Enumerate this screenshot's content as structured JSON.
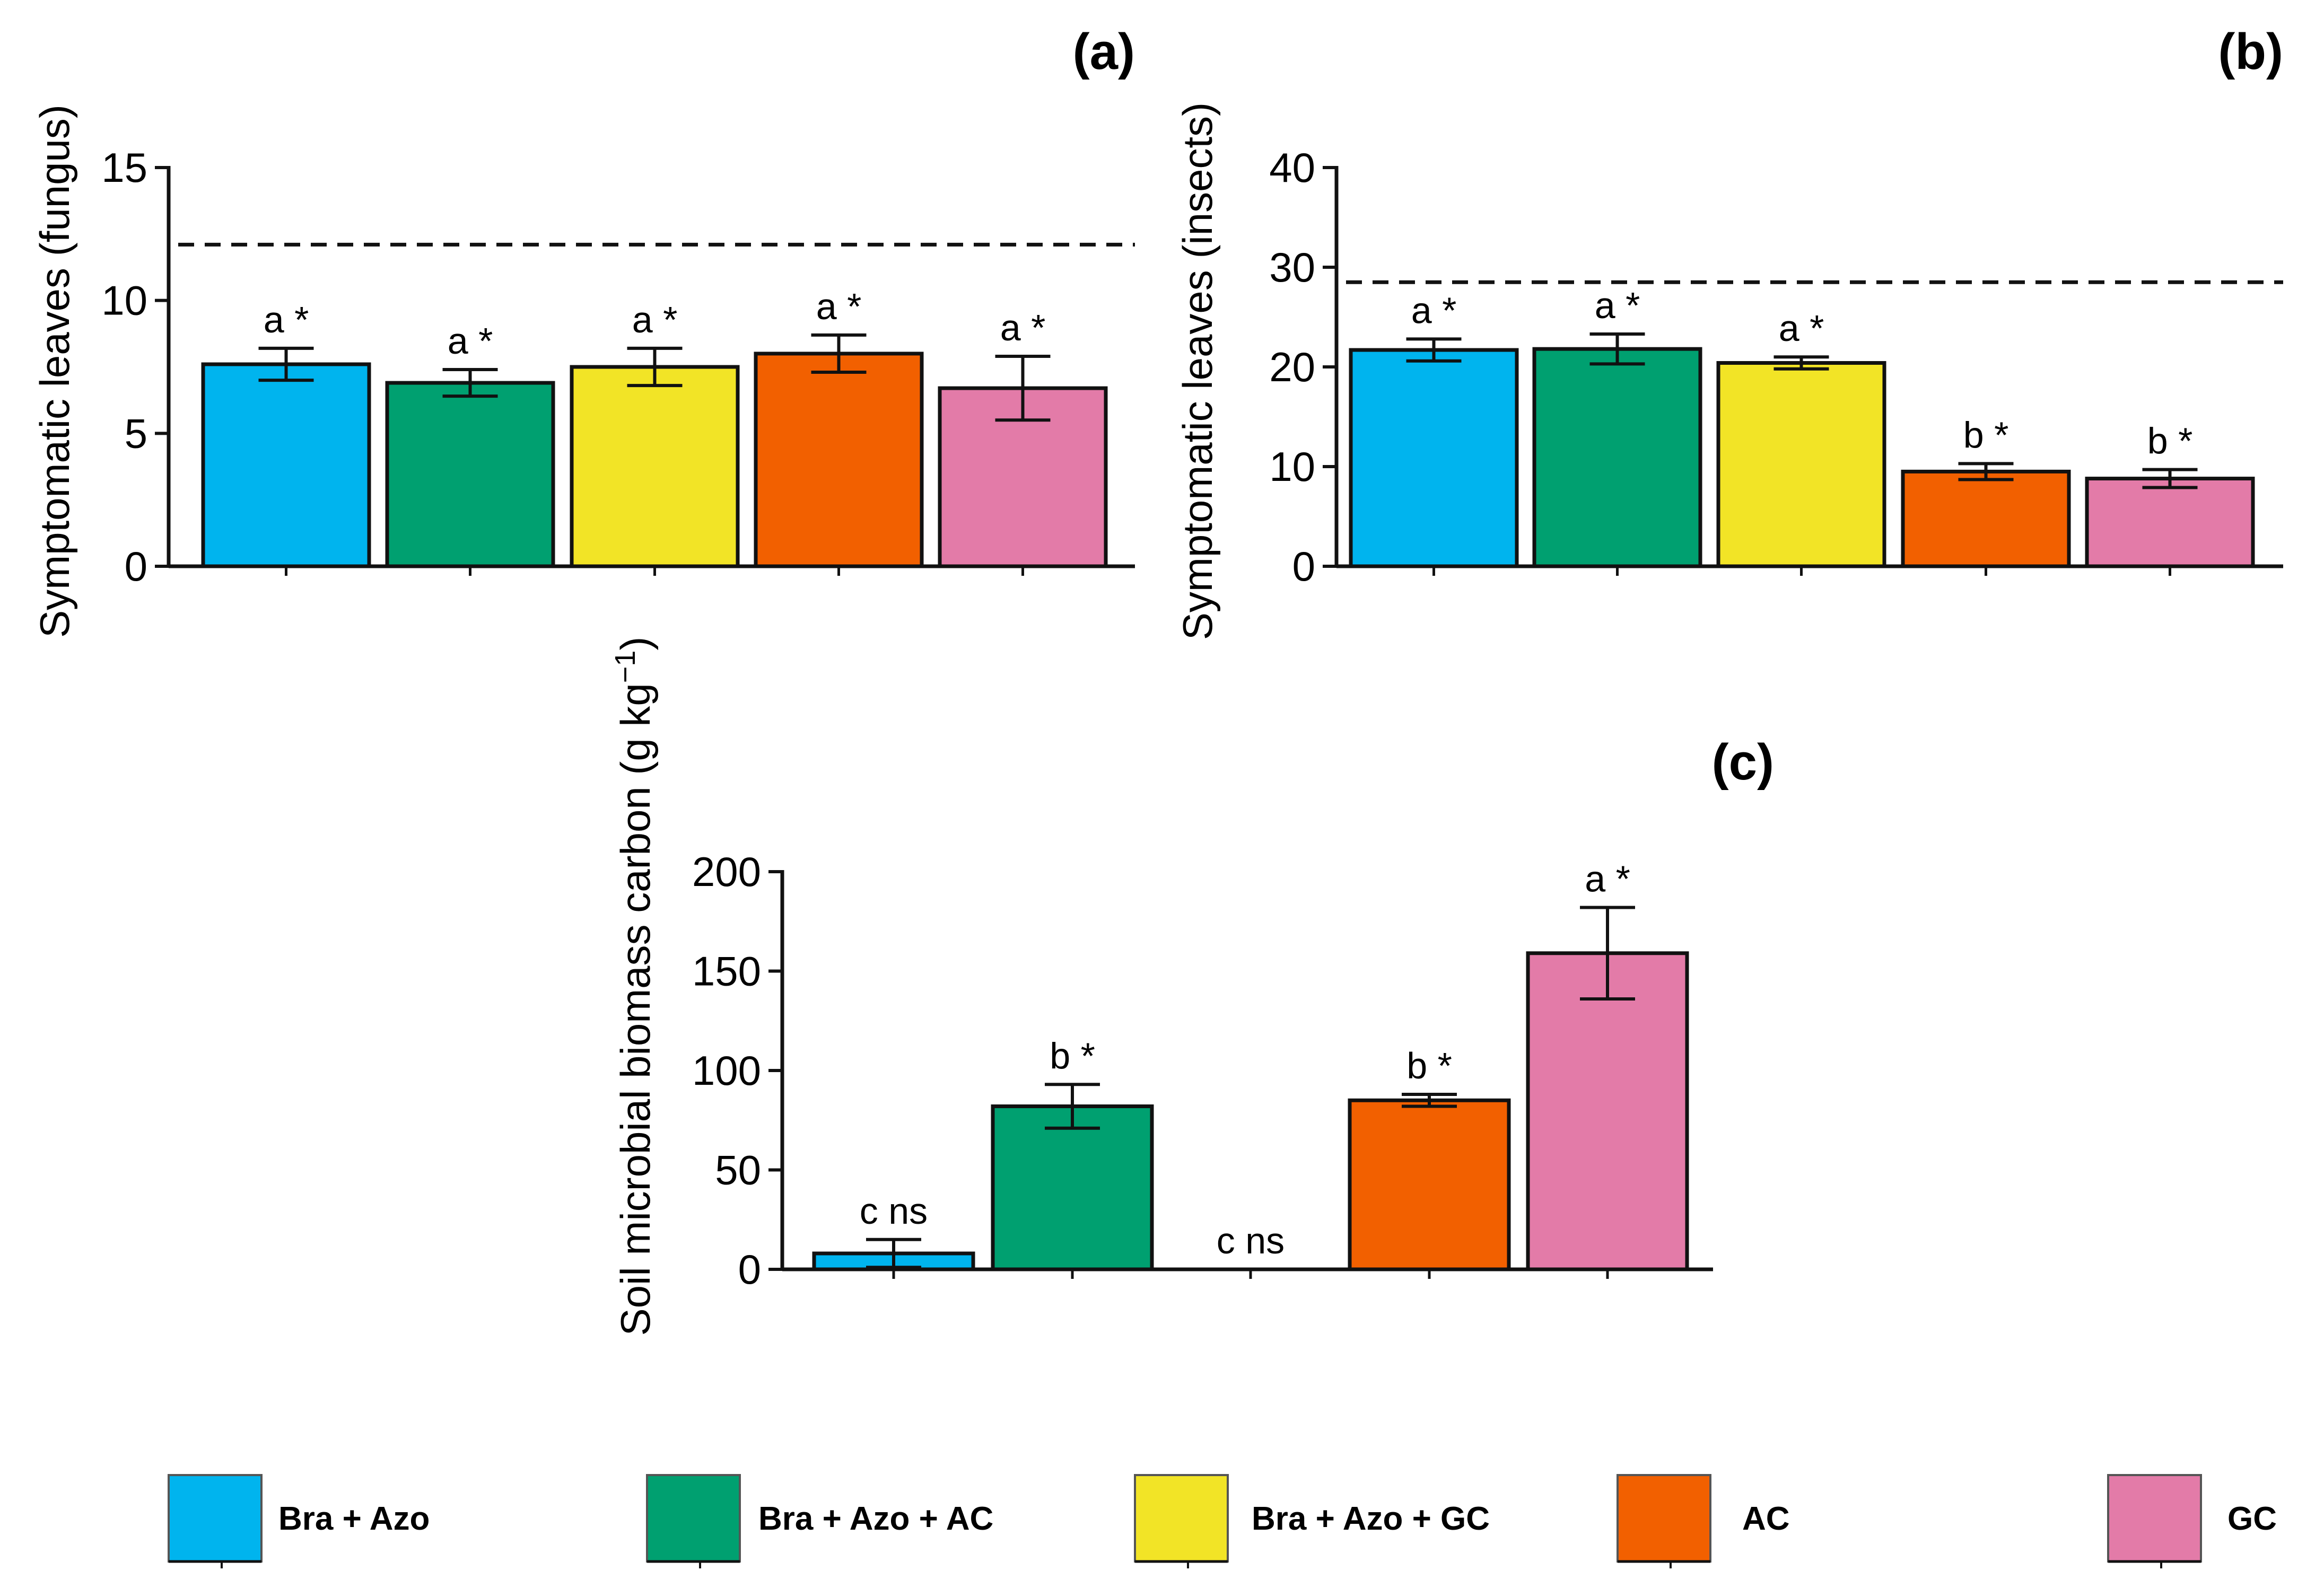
{
  "chart_data": [
    {
      "type": "bar",
      "panel_label": "(a)",
      "title": "",
      "xlabel": "",
      "ylabel": "Symptomatic leaves (fungus)",
      "ylim": [
        0,
        15
      ],
      "yticks": [
        "0",
        "5",
        "10",
        "15"
      ],
      "categories": [
        "Bra + Azo",
        "Bra + Azo + AC",
        "Bra + Azo + GC",
        "AC",
        "GC"
      ],
      "values": [
        7.6,
        6.9,
        7.5,
        8.0,
        6.7
      ],
      "errors": [
        0.6,
        0.5,
        0.7,
        0.7,
        1.2
      ],
      "significance": [
        "a *",
        "a *",
        "a *",
        "a *",
        "a *"
      ],
      "reference_line": 12.1
    },
    {
      "type": "bar",
      "panel_label": "(b)",
      "title": "",
      "xlabel": "",
      "ylabel": "Symptomatic leaves (insects)",
      "ylim": [
        0,
        40
      ],
      "yticks": [
        "0",
        "10",
        "20",
        "30",
        "40"
      ],
      "categories": [
        "Bra + Azo",
        "Bra + Azo + AC",
        "Bra + Azo + GC",
        "AC",
        "GC"
      ],
      "values": [
        21.7,
        21.8,
        20.4,
        9.5,
        8.8
      ],
      "errors": [
        1.1,
        1.5,
        0.6,
        0.8,
        0.9
      ],
      "significance": [
        "a *",
        "a *",
        "a *",
        "b *",
        "b *"
      ],
      "reference_line": 28.5
    },
    {
      "type": "bar",
      "panel_label": "(c)",
      "title": "",
      "xlabel": "",
      "ylabel": "Soil microbial biomass carbon  (g kg",
      "ylabel_sup": "−1",
      "ylabel_end": ")",
      "ylim": [
        0,
        200
      ],
      "yticks": [
        "0",
        "50",
        "100",
        "150",
        "200"
      ],
      "categories": [
        "Bra + Azo",
        "Bra + Azo + AC",
        "Bra + Azo + GC",
        "AC",
        "GC"
      ],
      "values": [
        8,
        82,
        0,
        85,
        159
      ],
      "errors": [
        7,
        11,
        0,
        3,
        23
      ],
      "significance": [
        "c ns",
        "b *",
        "c ns",
        "b *",
        "a *"
      ]
    }
  ],
  "legend": {
    "items": [
      {
        "label": "Bra + Azo",
        "color": "#00b4ee"
      },
      {
        "label": "Bra + Azo + AC",
        "color": "#00a070"
      },
      {
        "label": "Bra + Azo + GC",
        "color": "#f2e426"
      },
      {
        "label": "AC",
        "color": "#f26000"
      },
      {
        "label": "GC",
        "color": "#e37ba8"
      }
    ]
  }
}
